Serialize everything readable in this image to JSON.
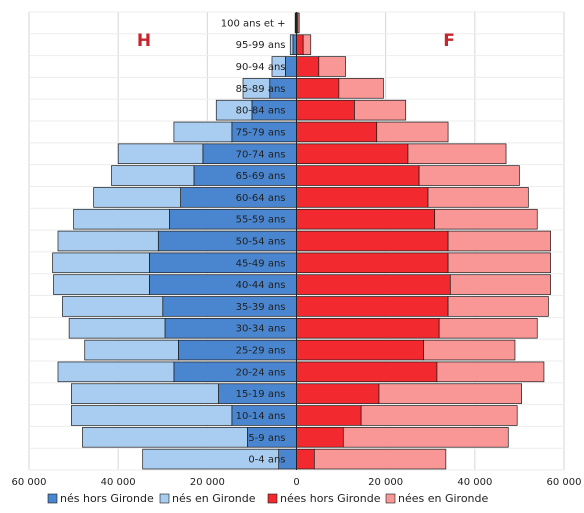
{
  "chart_data": {
    "type": "bar",
    "orientation": "horizontal-population-pyramid",
    "side_labels": {
      "left": "H",
      "right": "F",
      "color": "#c8242b"
    },
    "categories": [
      "0-4 ans",
      "5-9 ans",
      "10-14 ans",
      "15-19 ans",
      "20-24 ans",
      "25-29 ans",
      "30-34 ans",
      "35-39 ans",
      "40-44 ans",
      "45-49 ans",
      "50-54 ans",
      "55-59 ans",
      "60-64 ans",
      "65-69 ans",
      "70-74 ans",
      "75-79 ans",
      "80-84 ans",
      "85-89 ans",
      "90-94 ans",
      "95-99 ans",
      "100 ans et +"
    ],
    "xlim": [
      -60000,
      60000
    ],
    "x_ticks": [
      {
        "value": -60000,
        "label": "60 000"
      },
      {
        "value": -40000,
        "label": "40 000"
      },
      {
        "value": -20000,
        "label": "20 000"
      },
      {
        "value": 0,
        "label": "0"
      },
      {
        "value": 20000,
        "label": "20 000"
      },
      {
        "value": 40000,
        "label": "40 000"
      },
      {
        "value": 60000,
        "label": "60 000"
      }
    ],
    "grid": true,
    "legend_position": "bottom",
    "series": [
      {
        "name": "nés hors Gironde",
        "side": "left",
        "color": "#4a86d0",
        "values": [
          4000,
          11000,
          14500,
          17500,
          27500,
          26500,
          29500,
          30000,
          33000,
          33000,
          31000,
          28500,
          26000,
          23000,
          21000,
          14500,
          10000,
          6000,
          2500,
          800,
          200
        ]
      },
      {
        "name": "nés en Gironde",
        "side": "left",
        "color": "#a9cdf0",
        "values": [
          30500,
          37000,
          36000,
          33000,
          26000,
          21000,
          21500,
          22500,
          21500,
          21700,
          22500,
          21500,
          19500,
          18500,
          19000,
          13000,
          8000,
          6000,
          3000,
          600,
          100
        ]
      },
      {
        "name": "nées hors Gironde",
        "side": "right",
        "color": "#f2292f",
        "values": [
          4000,
          10500,
          14500,
          18500,
          31500,
          28500,
          32000,
          34000,
          34500,
          34000,
          34000,
          31000,
          29500,
          27500,
          25000,
          18000,
          13000,
          9500,
          5000,
          1500,
          300
        ]
      },
      {
        "name": "nées en Gironde",
        "side": "right",
        "color": "#f99797",
        "values": [
          29500,
          37000,
          35000,
          32000,
          24000,
          20500,
          22000,
          22500,
          22500,
          23000,
          23000,
          23000,
          22500,
          22500,
          22000,
          16000,
          11500,
          10000,
          6000,
          1700,
          300
        ]
      }
    ]
  }
}
